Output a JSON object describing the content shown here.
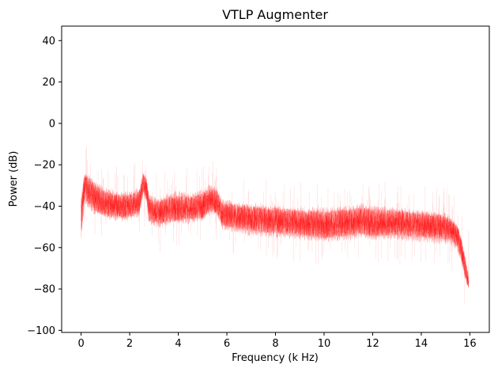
{
  "chart_data": {
    "type": "line",
    "title": "VTLP Augmenter",
    "xlabel": "Frequency (k Hz)",
    "ylabel": "Power (dB)",
    "xlim": [
      -0.8,
      16.8
    ],
    "ylim": [
      -101,
      47
    ],
    "xticks": [
      0,
      2,
      4,
      6,
      8,
      10,
      12,
      14,
      16
    ],
    "yticks": [
      -100,
      -80,
      -60,
      -40,
      -20,
      0,
      20,
      40
    ],
    "xtick_labels": [
      "0",
      "2",
      "4",
      "6",
      "8",
      "10",
      "12",
      "14",
      "16"
    ],
    "ytick_labels": [
      "−100",
      "−80",
      "−60",
      "−40",
      "−20",
      "0",
      "20",
      "40"
    ],
    "grid": false,
    "legend": "none",
    "series": [
      {
        "color": "#ff0000",
        "x": [
          0.0,
          0.15,
          0.3,
          0.6,
          1.0,
          1.5,
          2.0,
          2.4,
          2.55,
          2.7,
          2.8,
          3.2,
          3.5,
          4.0,
          4.5,
          5.0,
          5.3,
          5.6,
          5.8,
          6.5,
          7.0,
          8.0,
          9.0,
          10.0,
          11.0,
          11.5,
          12.0,
          13.0,
          14.0,
          14.8,
          15.2,
          15.5,
          15.7,
          15.85,
          15.95
        ],
        "center": [
          -45,
          -30,
          -33,
          -36,
          -39,
          -40,
          -40,
          -38,
          -29,
          -32,
          -42,
          -43,
          -42,
          -41,
          -41,
          -40,
          -37,
          -38,
          -44,
          -45,
          -46,
          -47,
          -48,
          -49,
          -48,
          -47,
          -48,
          -48,
          -49,
          -50,
          -51,
          -55,
          -63,
          -72,
          -77
        ],
        "upper": [
          -36,
          -25,
          -26,
          -29,
          -32,
          -34,
          -34,
          -32,
          -24,
          -27,
          -36,
          -37,
          -35,
          -34,
          -35,
          -33,
          -31,
          -32,
          -38,
          -39,
          -40,
          -41,
          -42,
          -42,
          -41,
          -40,
          -41,
          -42,
          -43,
          -44,
          -46,
          -50,
          -58,
          -67,
          -74
        ],
        "lower": [
          -56,
          -38,
          -40,
          -43,
          -45,
          -46,
          -46,
          -44,
          -34,
          -38,
          -48,
          -49,
          -48,
          -47,
          -47,
          -46,
          -43,
          -44,
          -50,
          -52,
          -53,
          -54,
          -55,
          -56,
          -55,
          -54,
          -55,
          -55,
          -56,
          -57,
          -57,
          -61,
          -69,
          -77,
          -79
        ],
        "spike_tips": [
          -11,
          -26,
          -21,
          -52
        ]
      }
    ]
  }
}
